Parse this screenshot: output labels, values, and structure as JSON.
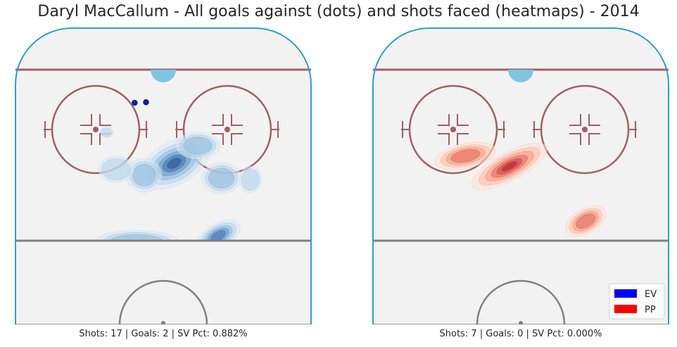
{
  "chart_data": {
    "type": "heatmap",
    "title": "Daryl MacCallum - All goals against (dots) and shots faced (heatmaps) - 2014",
    "legend": {
      "placement": "bottom-right",
      "entries": [
        {
          "label": "EV",
          "color": "#0000ff"
        },
        {
          "label": "PP",
          "color": "#ff0000"
        }
      ]
    },
    "panels": [
      {
        "situation": "EV",
        "palette": "blue",
        "caption": "Shots: 17 | Goals: 2 | SV Pct: 0.882%",
        "shots": 17,
        "goals": 2,
        "sv_pct": "0.882%",
        "goal_points": [
          {
            "x": 0.47,
            "y": 0.252
          },
          {
            "x": 0.523,
            "y": 0.25
          }
        ],
        "density_clusters": [
          {
            "x": 0.5,
            "y": 0.29,
            "sx": 0.085,
            "sy": 0.048,
            "rot": -28,
            "w": 1.0
          },
          {
            "x": 0.61,
            "y": 0.23,
            "sx": 0.05,
            "sy": 0.03,
            "rot": 0,
            "w": 0.45
          },
          {
            "x": 0.36,
            "y": 0.33,
            "sx": 0.04,
            "sy": 0.038,
            "rot": 0,
            "w": 0.45
          },
          {
            "x": 0.23,
            "y": 0.31,
            "sx": 0.04,
            "sy": 0.03,
            "rot": 0,
            "w": 0.35
          },
          {
            "x": 0.72,
            "y": 0.34,
            "sx": 0.045,
            "sy": 0.035,
            "rot": 0,
            "w": 0.45
          },
          {
            "x": 0.855,
            "y": 0.345,
            "sx": 0.025,
            "sy": 0.03,
            "rot": 0,
            "w": 0.35
          },
          {
            "x": 0.325,
            "y": 0.555,
            "sx": 0.095,
            "sy": 0.026,
            "rot": 0,
            "w": 0.55
          },
          {
            "x": 0.705,
            "y": 0.535,
            "sx": 0.055,
            "sy": 0.028,
            "rot": -30,
            "w": 0.75
          },
          {
            "x": 0.28,
            "y": 0.695,
            "sx": 0.035,
            "sy": 0.018,
            "rot": 0,
            "w": 0.4
          },
          {
            "x": 0.185,
            "y": 0.185,
            "sx": 0.015,
            "sy": 0.012,
            "rot": 0,
            "w": 0.3
          },
          {
            "x": 0.6,
            "y": 0.61,
            "sx": 0.015,
            "sy": 0.015,
            "rot": 0,
            "w": 0.25
          }
        ]
      },
      {
        "situation": "PP",
        "palette": "red",
        "caption": "Shots: 7 | Goals: 0 | SV Pct: 0.000%",
        "shots": 7,
        "goals": 0,
        "sv_pct": "0.000%",
        "goal_points": [],
        "density_clusters": [
          {
            "x": 0.495,
            "y": 0.3,
            "sx": 0.095,
            "sy": 0.032,
            "rot": -28,
            "w": 1.0
          },
          {
            "x": 0.29,
            "y": 0.265,
            "sx": 0.07,
            "sy": 0.028,
            "rot": -12,
            "w": 0.6
          },
          {
            "x": 0.095,
            "y": 0.62,
            "sx": 0.065,
            "sy": 0.04,
            "rot": 0,
            "w": 0.95
          },
          {
            "x": 0.85,
            "y": 0.485,
            "sx": 0.05,
            "sy": 0.028,
            "rot": -30,
            "w": 0.6
          }
        ]
      }
    ],
    "grid": false
  }
}
